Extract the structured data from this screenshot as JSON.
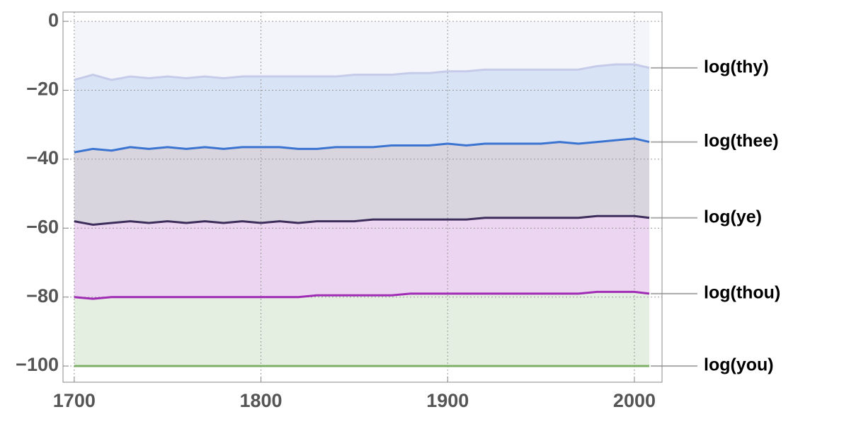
{
  "chart_data": {
    "type": "area",
    "x": [
      1700,
      1710,
      1720,
      1730,
      1740,
      1750,
      1760,
      1770,
      1780,
      1790,
      1800,
      1810,
      1820,
      1830,
      1840,
      1850,
      1860,
      1870,
      1880,
      1890,
      1900,
      1910,
      1920,
      1930,
      1940,
      1950,
      1960,
      1970,
      1980,
      1990,
      2000,
      2008
    ],
    "series": [
      {
        "name": "log(you)",
        "color": "#7fb06a",
        "values": [
          -100,
          -100,
          -100,
          -100,
          -100,
          -100,
          -100,
          -100,
          -100,
          -100,
          -100,
          -100,
          -100,
          -100,
          -100,
          -100,
          -100,
          -100,
          -100,
          -100,
          -100,
          -100,
          -100,
          -100,
          -100,
          -100,
          -100,
          -100,
          -100,
          -100,
          -100,
          -100
        ]
      },
      {
        "name": "log(thou)",
        "color": "#a02cb5",
        "values": [
          -80,
          -80.5,
          -80,
          -80,
          -80,
          -80,
          -80,
          -80,
          -80,
          -80,
          -80,
          -80,
          -80,
          -79.5,
          -79.5,
          -79.5,
          -79.5,
          -79.5,
          -79,
          -79,
          -79,
          -79,
          -79,
          -79,
          -79,
          -79,
          -79,
          -79,
          -78.5,
          -78.5,
          -78.5,
          -79
        ]
      },
      {
        "name": "log(ye)",
        "color": "#3d2d5a",
        "values": [
          -58,
          -59,
          -58.5,
          -58,
          -58.5,
          -58,
          -58.5,
          -58,
          -58.5,
          -58,
          -58.5,
          -58,
          -58.5,
          -58,
          -58,
          -58,
          -57.5,
          -57.5,
          -57.5,
          -57.5,
          -57.5,
          -57.5,
          -57,
          -57,
          -57,
          -57,
          -57,
          -57,
          -56.5,
          -56.5,
          -56.5,
          -57
        ]
      },
      {
        "name": "log(thee)",
        "color": "#3a73d0",
        "values": [
          -38,
          -37,
          -37.5,
          -36.5,
          -37,
          -36.5,
          -37,
          -36.5,
          -37,
          -36.5,
          -36.5,
          -36.5,
          -37,
          -37,
          -36.5,
          -36.5,
          -36.5,
          -36,
          -36,
          -36,
          -35.5,
          -36,
          -35.5,
          -35.5,
          -35.5,
          -35.5,
          -35,
          -35.5,
          -35,
          -34.5,
          -34,
          -35
        ]
      },
      {
        "name": "log(thy)",
        "color": "#c5cbe8",
        "values": [
          -17,
          -15.5,
          -17,
          -16,
          -16.5,
          -16,
          -16.5,
          -16,
          -16.5,
          -16,
          -16,
          -16,
          -16,
          -16,
          -16,
          -15.5,
          -15.5,
          -15.5,
          -15,
          -15,
          -14.5,
          -14.5,
          -14,
          -14,
          -14,
          -14,
          -14,
          -14,
          -13,
          -12.5,
          -12.5,
          -13.5
        ]
      }
    ],
    "xlim": [
      1694,
      2014.8
    ],
    "xticks": [
      1700,
      1800,
      1900,
      2000
    ],
    "ylim": [
      -104.7,
      2.7
    ],
    "yticks": [
      {
        "value": -100,
        "label": "−100"
      },
      {
        "value": -80,
        "label": "−80"
      },
      {
        "value": -60,
        "label": "−60"
      },
      {
        "value": -40,
        "label": "−40"
      },
      {
        "value": -20,
        "label": "−20"
      },
      0
    ],
    "grid": true
  }
}
